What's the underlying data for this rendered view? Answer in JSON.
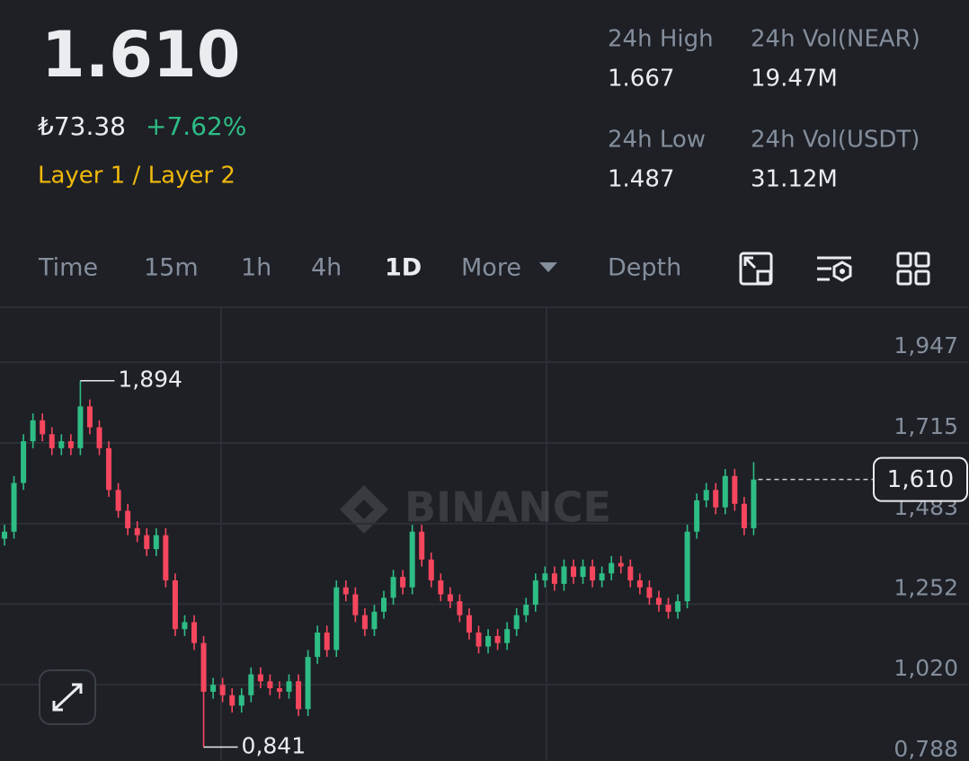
{
  "header": {
    "price": "1.610",
    "fiat": "₺73.38",
    "change": "+7.62%",
    "tag": "Layer 1 / Layer 2",
    "stats": [
      {
        "label": "24h High",
        "value": "1.667"
      },
      {
        "label": "24h Vol(NEAR)",
        "value": "19.47M"
      },
      {
        "label": "24h Low",
        "value": "1.487"
      },
      {
        "label": "24h Vol(USDT)",
        "value": "31.12M"
      }
    ]
  },
  "tabs": [
    "Time",
    "15m",
    "1h",
    "4h",
    "1D",
    "More",
    "Depth"
  ],
  "watermark": "BINANCE",
  "chart_data": {
    "type": "candlestick",
    "open": [
      1.44,
      1.46,
      1.6,
      1.72,
      1.78,
      1.74,
      1.7,
      1.72,
      1.7,
      1.82,
      1.76,
      1.7,
      1.58,
      1.52,
      1.47,
      1.45,
      1.41,
      1.45,
      1.32,
      1.18,
      1.2,
      1.14,
      1.0,
      1.02,
      0.99,
      0.96,
      0.99,
      1.05,
      1.03,
      1.01,
      1.0,
      1.03,
      0.95,
      1.1,
      1.17,
      1.12,
      1.3,
      1.28,
      1.22,
      1.18,
      1.23,
      1.27,
      1.33,
      1.3,
      1.46,
      1.38,
      1.32,
      1.28,
      1.26,
      1.22,
      1.17,
      1.13,
      1.16,
      1.14,
      1.18,
      1.22,
      1.25,
      1.32,
      1.34,
      1.31,
      1.36,
      1.33,
      1.36,
      1.32,
      1.34,
      1.37,
      1.36,
      1.32,
      1.3,
      1.27,
      1.25,
      1.23,
      1.26,
      1.46,
      1.55,
      1.58,
      1.53,
      1.62,
      1.54,
      1.47
    ],
    "high": [
      1.48,
      1.62,
      1.74,
      1.8,
      1.8,
      1.76,
      1.74,
      1.74,
      1.894,
      1.84,
      1.78,
      1.72,
      1.6,
      1.54,
      1.49,
      1.47,
      1.47,
      1.47,
      1.34,
      1.22,
      1.22,
      1.16,
      1.04,
      1.04,
      1.01,
      1.01,
      1.07,
      1.07,
      1.05,
      1.03,
      1.05,
      1.05,
      1.12,
      1.19,
      1.19,
      1.32,
      1.32,
      1.3,
      1.24,
      1.25,
      1.29,
      1.35,
      1.35,
      1.48,
      1.48,
      1.4,
      1.34,
      1.3,
      1.28,
      1.24,
      1.19,
      1.18,
      1.18,
      1.2,
      1.24,
      1.27,
      1.34,
      1.36,
      1.36,
      1.38,
      1.38,
      1.38,
      1.38,
      1.36,
      1.39,
      1.39,
      1.38,
      1.34,
      1.32,
      1.29,
      1.27,
      1.28,
      1.48,
      1.57,
      1.6,
      1.6,
      1.64,
      1.64,
      1.56,
      1.66
    ],
    "low": [
      1.42,
      1.44,
      1.58,
      1.7,
      1.72,
      1.68,
      1.68,
      1.68,
      1.68,
      1.74,
      1.68,
      1.56,
      1.5,
      1.45,
      1.43,
      1.39,
      1.39,
      1.3,
      1.16,
      1.16,
      1.12,
      0.841,
      0.98,
      0.97,
      0.94,
      0.94,
      0.97,
      1.01,
      0.99,
      0.98,
      0.98,
      0.93,
      0.93,
      1.08,
      1.1,
      1.1,
      1.26,
      1.2,
      1.16,
      1.16,
      1.21,
      1.25,
      1.28,
      1.28,
      1.36,
      1.3,
      1.26,
      1.24,
      1.2,
      1.15,
      1.11,
      1.11,
      1.12,
      1.12,
      1.16,
      1.2,
      1.23,
      1.3,
      1.29,
      1.29,
      1.31,
      1.31,
      1.3,
      1.3,
      1.32,
      1.34,
      1.3,
      1.28,
      1.25,
      1.23,
      1.21,
      1.21,
      1.24,
      1.44,
      1.53,
      1.51,
      1.51,
      1.52,
      1.45,
      1.45
    ],
    "close": [
      1.46,
      1.6,
      1.72,
      1.78,
      1.74,
      1.7,
      1.72,
      1.7,
      1.82,
      1.76,
      1.7,
      1.58,
      1.52,
      1.47,
      1.45,
      1.41,
      1.45,
      1.32,
      1.18,
      1.2,
      1.14,
      1.0,
      1.02,
      0.99,
      0.96,
      0.99,
      1.05,
      1.03,
      1.01,
      1.0,
      1.03,
      0.95,
      1.1,
      1.17,
      1.12,
      1.3,
      1.28,
      1.22,
      1.18,
      1.23,
      1.27,
      1.33,
      1.3,
      1.46,
      1.38,
      1.32,
      1.28,
      1.26,
      1.22,
      1.17,
      1.13,
      1.16,
      1.14,
      1.18,
      1.22,
      1.25,
      1.32,
      1.34,
      1.31,
      1.36,
      1.33,
      1.36,
      1.32,
      1.34,
      1.37,
      1.36,
      1.32,
      1.3,
      1.27,
      1.25,
      1.23,
      1.26,
      1.46,
      1.55,
      1.58,
      1.53,
      1.62,
      1.54,
      1.47,
      1.61
    ],
    "ylim": [
      0.788,
      2.105
    ],
    "yticks": [
      {
        "value": 0.788,
        "label": "0,788"
      },
      {
        "value": 1.02,
        "label": "1,020"
      },
      {
        "value": 1.252,
        "label": "1,252"
      },
      {
        "value": 1.483,
        "label": "1,483"
      },
      {
        "value": 1.715,
        "label": "1,715"
      },
      {
        "value": 1.947,
        "label": "1,947"
      }
    ],
    "grid": true,
    "annotations": [
      {
        "value": 1.894,
        "label": "1,894"
      },
      {
        "value": 0.841,
        "label": "0,841"
      }
    ],
    "last_price": {
      "value": 1.61,
      "label": "1,610"
    },
    "colors": {
      "up": "#2ebd85",
      "down": "#f6465d",
      "grid": "#2b2f36"
    }
  }
}
